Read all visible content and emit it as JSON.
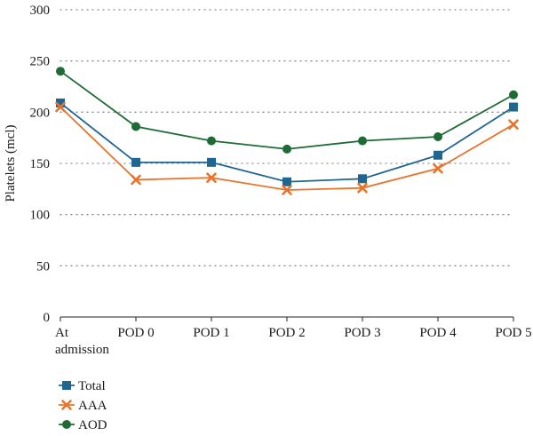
{
  "chart_data": {
    "type": "line",
    "categories": [
      "At admission",
      "POD 0",
      "POD 1",
      "POD 2",
      "POD 3",
      "POD 4",
      "POD 5"
    ],
    "category_labels": [
      [
        "At",
        "admission"
      ],
      [
        "POD 0"
      ],
      [
        "POD 1"
      ],
      [
        "POD 2"
      ],
      [
        "POD 3"
      ],
      [
        "POD 4"
      ],
      [
        "POD 5"
      ]
    ],
    "ylabel": "Platelets (mcl)",
    "ylim": [
      0,
      300
    ],
    "yticks": [
      0,
      50,
      100,
      150,
      200,
      250,
      300
    ],
    "grid": "horizontal dotted",
    "legend_position": "bottom-left",
    "series": [
      {
        "name": "Total",
        "marker": "square",
        "color": "#1f6690",
        "values": [
          209,
          151,
          151,
          132,
          135,
          158,
          205
        ]
      },
      {
        "name": "AAA",
        "marker": "x",
        "color": "#e8742c",
        "values": [
          205,
          134,
          136,
          124,
          126,
          145,
          188
        ]
      },
      {
        "name": "AOD",
        "marker": "circle",
        "color": "#1e6b36",
        "values": [
          240,
          186,
          172,
          164,
          172,
          176,
          217
        ]
      }
    ]
  }
}
